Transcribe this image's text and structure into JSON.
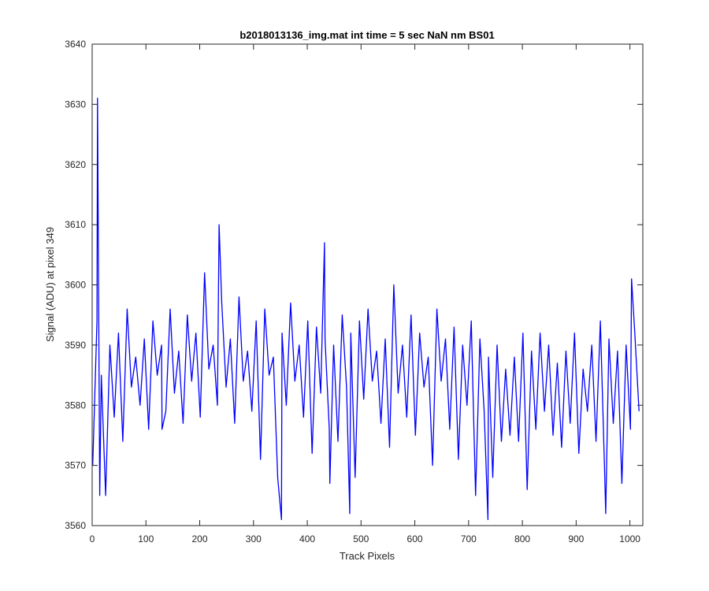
{
  "chart_data": {
    "type": "line",
    "title": "b2018013136_img.mat int time = 5 sec  NaN nm BS01",
    "xlabel": "Track Pixels",
    "ylabel": "Signal (ADU) at pixel 349",
    "xlim": [
      0,
      1024
    ],
    "ylim": [
      3560,
      3640
    ],
    "x_ticks": [
      "0",
      "100",
      "200",
      "300",
      "400",
      "500",
      "600",
      "700",
      "800",
      "900",
      "1000"
    ],
    "y_ticks": [
      "3560",
      "3570",
      "3580",
      "3590",
      "3600",
      "3610",
      "3620",
      "3630",
      "3640"
    ],
    "grid": false,
    "series_color": "#0000ff",
    "series": [
      {
        "x_start": 1,
        "x_step": 8,
        "values": [
          3570,
          3594,
          3585,
          3565,
          3590,
          3578,
          3592,
          3574,
          3596,
          3583,
          3588,
          3580,
          3591,
          3576,
          3594,
          3585,
          3590,
          3579,
          3596,
          3582,
          3589,
          3577,
          3595,
          3584,
          3592,
          3578,
          3602,
          3586,
          3590,
          3580,
          3597,
          3583,
          3591,
          3577,
          3598,
          3584,
          3589,
          3579,
          3594,
          3571,
          3596,
          3585,
          3588,
          3568,
          3592,
          3580,
          3597,
          3584,
          3590,
          3578,
          3594,
          3572,
          3593,
          3582,
          3591,
          3576,
          3590,
          3574,
          3595,
          3583,
          3592,
          3568,
          3594,
          3581,
          3596,
          3584,
          3589,
          3577,
          3591,
          3573,
          3600,
          3582,
          3590,
          3578,
          3595,
          3575,
          3592,
          3583,
          3588,
          3570,
          3596,
          3584,
          3591,
          3576,
          3593,
          3571,
          3590,
          3580,
          3594,
          3565,
          3591,
          3579,
          3588,
          3568,
          3590,
          3574,
          3586,
          3575,
          3588,
          3574,
          3592,
          3566,
          3589,
          3576,
          3592,
          3579,
          3590,
          3575,
          3587,
          3573,
          3589,
          3577,
          3592,
          3572,
          3586,
          3579,
          3590,
          3574,
          3594,
          3569,
          3591,
          3577,
          3589,
          3567,
          3590,
          3576,
          3592,
          3579
        ],
        "notable_points": [
          {
            "x": 10,
            "y": 3631
          },
          {
            "x": 14,
            "y": 3565
          },
          {
            "x": 130,
            "y": 3576
          },
          {
            "x": 236,
            "y": 3610
          },
          {
            "x": 352,
            "y": 3561
          },
          {
            "x": 432,
            "y": 3607
          },
          {
            "x": 442,
            "y": 3567
          },
          {
            "x": 479,
            "y": 3562
          },
          {
            "x": 736,
            "y": 3561
          },
          {
            "x": 955,
            "y": 3562
          },
          {
            "x": 1003,
            "y": 3601
          }
        ]
      }
    ]
  }
}
